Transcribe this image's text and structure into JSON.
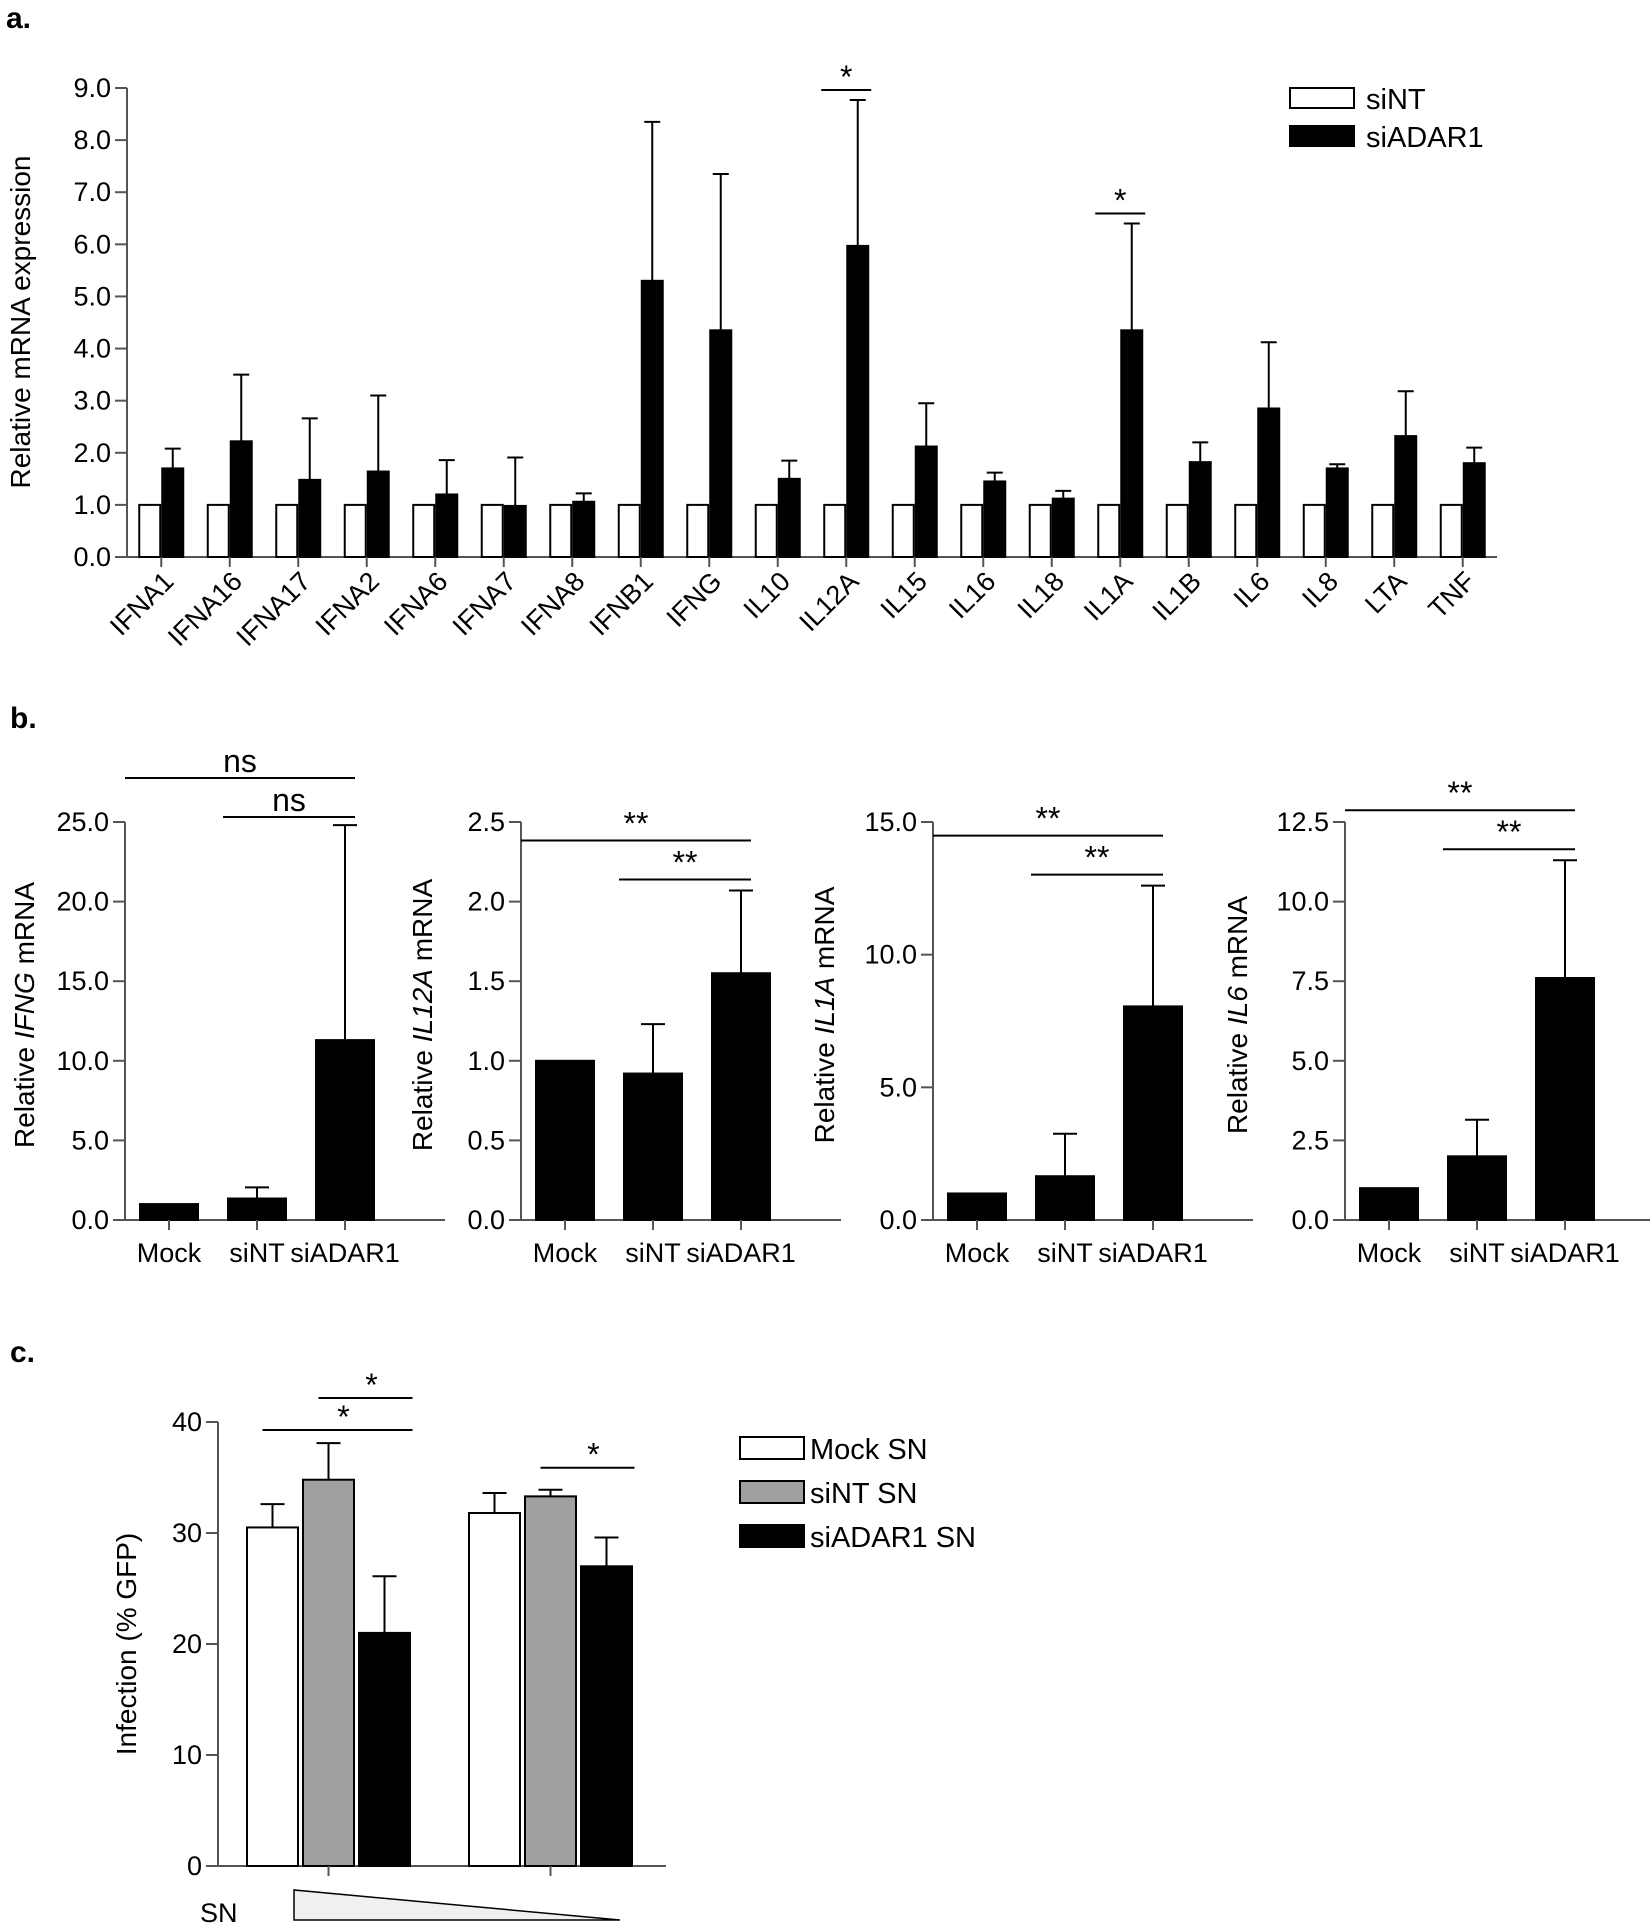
{
  "panel_labels": [
    "a.",
    "b.",
    "c."
  ],
  "chart_data": [
    {
      "id": "a",
      "type": "bar",
      "title": "",
      "ylabel": "Relative mRNA expression",
      "xlabel": "",
      "ylim": [
        0,
        9
      ],
      "yticks": [
        "0.0",
        "1.0",
        "2.0",
        "3.0",
        "4.0",
        "5.0",
        "6.0",
        "7.0",
        "8.0",
        "9.0"
      ],
      "categories": [
        "IFNA1",
        "IFNA16",
        "IFNA17",
        "IFNA2",
        "IFNA6",
        "IFNA7",
        "IFNA8",
        "IFNB1",
        "IFNG",
        "IL10",
        "IL12A",
        "IL15",
        "IL16",
        "IL18",
        "IL1A",
        "IL1B",
        "IL6",
        "IL8",
        "LTA",
        "TNF"
      ],
      "series": [
        {
          "name": "siNT",
          "color": "#ffffff",
          "values": [
            1.0,
            1.0,
            1.0,
            1.0,
            1.0,
            1.0,
            1.0,
            1.0,
            1.0,
            1.0,
            1.0,
            1.0,
            1.0,
            1.0,
            1.0,
            1.0,
            1.0,
            1.0,
            1.0,
            1.0
          ],
          "errors": [
            0,
            0,
            0,
            0,
            0,
            0,
            0,
            0,
            0,
            0,
            0,
            0,
            0,
            0,
            0,
            0,
            0,
            0,
            0,
            0
          ]
        },
        {
          "name": "siADAR1",
          "color": "#000000",
          "values": [
            1.7,
            2.22,
            1.48,
            1.64,
            1.2,
            0.98,
            1.06,
            5.3,
            4.35,
            1.5,
            5.97,
            2.12,
            1.45,
            1.12,
            4.35,
            1.82,
            2.85,
            1.7,
            2.32,
            1.8
          ],
          "errors": [
            0.38,
            1.28,
            1.18,
            1.46,
            0.66,
            0.93,
            0.16,
            3.05,
            3.0,
            0.35,
            2.8,
            0.83,
            0.17,
            0.15,
            2.05,
            0.38,
            1.27,
            0.08,
            0.86,
            0.3
          ]
        }
      ],
      "legend": [
        "siNT",
        "siADAR1"
      ],
      "legend_position": "top-right",
      "annotations": [
        {
          "text": "*",
          "category": "IL12A"
        },
        {
          "text": "*",
          "category": "IL1A"
        }
      ]
    },
    {
      "id": "b1",
      "type": "bar",
      "ylabel_pre": "Relative ",
      "ylabel_gene": "IFNG",
      "ylabel_post": " mRNA",
      "ylim": [
        0,
        25
      ],
      "yticks": [
        "0.0",
        "5.0",
        "10.0",
        "15.0",
        "20.0",
        "25.0"
      ],
      "categories": [
        "Mock",
        "siNT",
        "siADAR1"
      ],
      "values": [
        1.0,
        1.35,
        11.3
      ],
      "errors": [
        0,
        0.7,
        13.5
      ],
      "color": "#000000",
      "brackets": [
        {
          "from": "Mock",
          "to": "siADAR1",
          "text": "ns"
        },
        {
          "from": "siNT",
          "to": "siADAR1",
          "text": "ns"
        }
      ]
    },
    {
      "id": "b2",
      "type": "bar",
      "ylabel_pre": "Relative ",
      "ylabel_gene": "IL12A",
      "ylabel_post": " mRNA",
      "ylim": [
        0,
        2.5
      ],
      "yticks": [
        "0.0",
        "0.5",
        "1.0",
        "1.5",
        "2.0",
        "2.5"
      ],
      "categories": [
        "Mock",
        "siNT",
        "siADAR1"
      ],
      "values": [
        1.0,
        0.92,
        1.55
      ],
      "errors": [
        0,
        0.31,
        0.52
      ],
      "color": "#000000",
      "brackets": [
        {
          "from": "Mock",
          "to": "siADAR1",
          "text": "**"
        },
        {
          "from": "siNT",
          "to": "siADAR1",
          "text": "**"
        }
      ]
    },
    {
      "id": "b3",
      "type": "bar",
      "ylabel_pre": "Relative ",
      "ylabel_gene": "IL1A",
      "ylabel_post": " mRNA",
      "ylim": [
        0,
        15
      ],
      "yticks": [
        "0.0",
        "5.0",
        "10.0",
        "15.0"
      ],
      "categories": [
        "Mock",
        "siNT",
        "siADAR1"
      ],
      "values": [
        1.0,
        1.65,
        8.05
      ],
      "errors": [
        0,
        1.6,
        4.55
      ],
      "color": "#000000",
      "brackets": [
        {
          "from": "Mock",
          "to": "siADAR1",
          "text": "**"
        },
        {
          "from": "siNT",
          "to": "siADAR1",
          "text": "**"
        }
      ]
    },
    {
      "id": "b4",
      "type": "bar",
      "ylabel_pre": "Relative ",
      "ylabel_gene": "IL6",
      "ylabel_post": " mRNA",
      "ylim": [
        0,
        12.5
      ],
      "yticks": [
        "0.0",
        "2.5",
        "5.0",
        "7.5",
        "10.0",
        "12.5"
      ],
      "categories": [
        "Mock",
        "siNT",
        "siADAR1"
      ],
      "values": [
        1.0,
        2.0,
        7.6
      ],
      "errors": [
        0,
        1.15,
        3.7
      ],
      "color": "#000000",
      "brackets": [
        {
          "from": "Mock",
          "to": "siADAR1",
          "text": "**"
        },
        {
          "from": "siNT",
          "to": "siADAR1",
          "text": "**"
        }
      ]
    },
    {
      "id": "c",
      "type": "bar",
      "ylabel": "Infection (% GFP)",
      "xlabel": "SN",
      "ylim": [
        0,
        40
      ],
      "yticks": [
        "0",
        "10",
        "20",
        "30",
        "40"
      ],
      "groups": 2,
      "series": [
        {
          "name": "Mock SN",
          "color": "#ffffff",
          "values": [
            30.5,
            31.8
          ],
          "errors": [
            2.1,
            1.8
          ]
        },
        {
          "name": "siNT SN",
          "color": "#a0a0a0",
          "values": [
            34.8,
            33.3
          ],
          "errors": [
            3.3,
            0.6
          ]
        },
        {
          "name": "siADAR1 SN",
          "color": "#000000",
          "values": [
            21.0,
            27.0
          ],
          "errors": [
            5.1,
            2.6
          ]
        }
      ],
      "legend": [
        "Mock SN",
        "siNT SN",
        "siADAR1 SN"
      ],
      "legend_position": "right",
      "brackets": [
        {
          "group": 0,
          "from": "siNT SN",
          "to": "siADAR1 SN",
          "text": "*"
        },
        {
          "group": 0,
          "from": "Mock SN",
          "to": "siADAR1 SN",
          "text": "*"
        },
        {
          "group": 1,
          "from": "siNT SN",
          "to": "siADAR1 SN",
          "text": "*"
        }
      ]
    }
  ]
}
